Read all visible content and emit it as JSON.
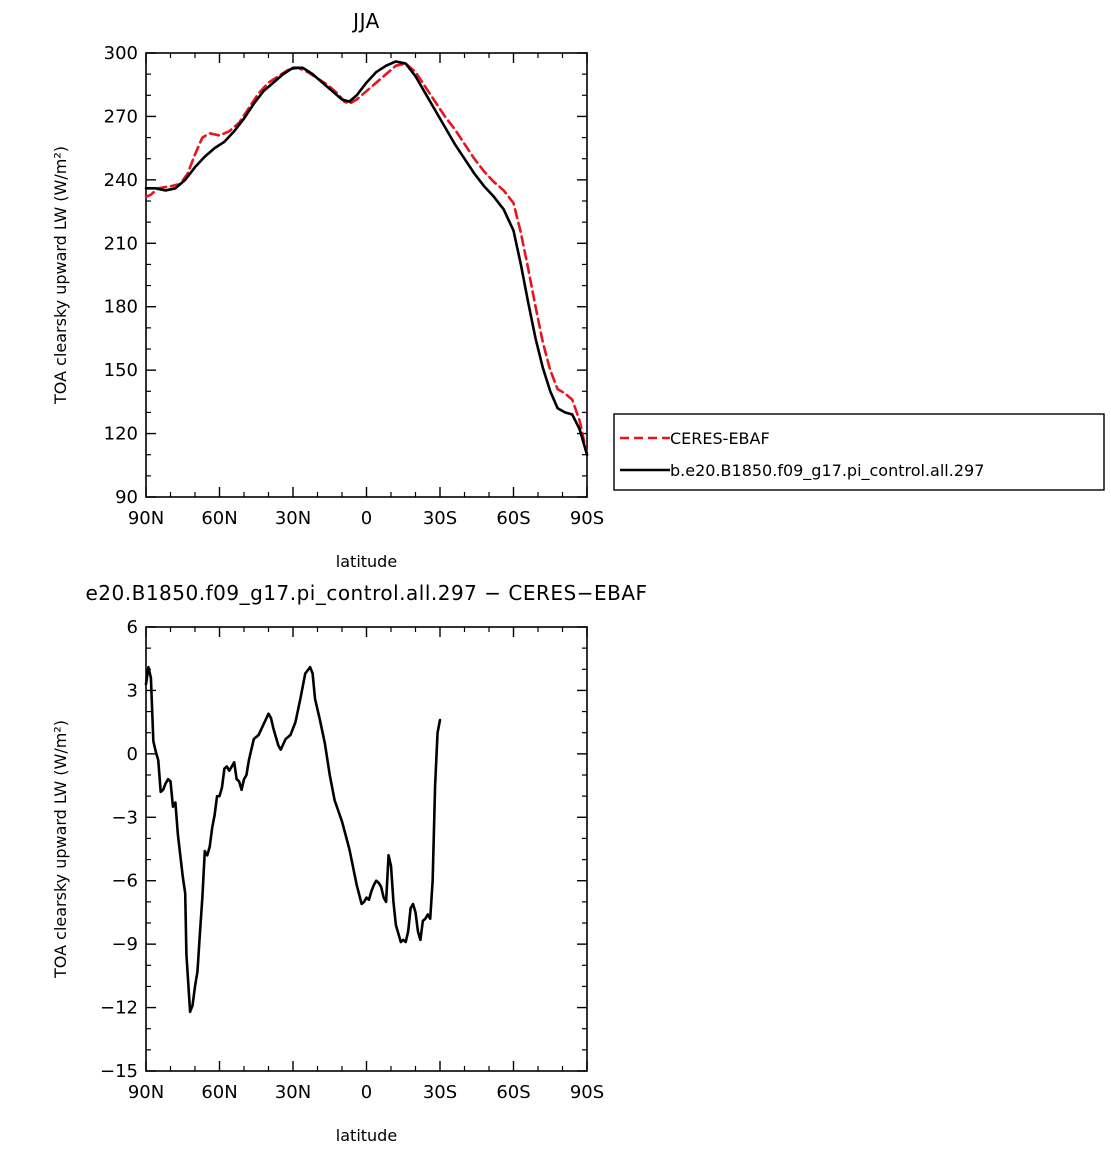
{
  "chart_data": [
    {
      "type": "line",
      "title": "JJA",
      "xlabel": "latitude",
      "ylabel": "TOA clearsky upward LW (W/m²)",
      "xlim": [
        90,
        -90
      ],
      "ylim": [
        90,
        300
      ],
      "yticks": [
        90,
        120,
        150,
        180,
        210,
        240,
        270,
        300
      ],
      "xticks": [
        {
          "value": 90,
          "label": "90N"
        },
        {
          "value": 60,
          "label": "60N"
        },
        {
          "value": 30,
          "label": "30N"
        },
        {
          "value": 0,
          "label": "0"
        },
        {
          "value": -30,
          "label": "30S"
        },
        {
          "value": -60,
          "label": "60S"
        },
        {
          "value": -90,
          "label": "90S"
        }
      ],
      "grid": false,
      "legend": {
        "placement": "right"
      },
      "series": [
        {
          "name": "CERES-EBAF",
          "color": "#e8141e",
          "dash": "dashed",
          "points": [
            [
              90,
              232
            ],
            [
              88,
              233
            ],
            [
              85,
              236
            ],
            [
              80,
              237
            ],
            [
              76,
              238
            ],
            [
              73,
              243
            ],
            [
              70,
              252
            ],
            [
              67,
              260
            ],
            [
              64,
              262
            ],
            [
              60,
              261
            ],
            [
              56,
              263
            ],
            [
              52,
              267
            ],
            [
              48,
              274
            ],
            [
              44,
              281
            ],
            [
              40,
              286
            ],
            [
              36,
              289
            ],
            [
              32,
              292
            ],
            [
              28,
              293
            ],
            [
              24,
              291
            ],
            [
              20,
              288
            ],
            [
              16,
              285
            ],
            [
              12,
              281
            ],
            [
              9,
              277
            ],
            [
              7,
              276
            ],
            [
              4,
              278
            ],
            [
              0,
              282
            ],
            [
              -4,
              286
            ],
            [
              -8,
              290
            ],
            [
              -12,
              294
            ],
            [
              -16,
              295
            ],
            [
              -20,
              291
            ],
            [
              -24,
              284
            ],
            [
              -28,
              277
            ],
            [
              -32,
              270
            ],
            [
              -36,
              264
            ],
            [
              -40,
              257
            ],
            [
              -44,
              250
            ],
            [
              -48,
              244
            ],
            [
              -52,
              239
            ],
            [
              -56,
              235
            ],
            [
              -60,
              229
            ],
            [
              -63,
              215
            ],
            [
              -66,
              198
            ],
            [
              -69,
              180
            ],
            [
              -72,
              163
            ],
            [
              -75,
              150
            ],
            [
              -78,
              141
            ],
            [
              -81,
              139
            ],
            [
              -84,
              136
            ],
            [
              -87,
              126
            ],
            [
              -90,
              110
            ]
          ]
        },
        {
          "name": "b.e20.B1850.f09_g17.pi_control.all.297",
          "color": "#000000",
          "dash": "solid",
          "points": [
            [
              90,
              236
            ],
            [
              86,
              236
            ],
            [
              82,
              235
            ],
            [
              78,
              236
            ],
            [
              74,
              240
            ],
            [
              70,
              246
            ],
            [
              66,
              251
            ],
            [
              62,
              255
            ],
            [
              58,
              258
            ],
            [
              54,
              263
            ],
            [
              50,
              269
            ],
            [
              46,
              276
            ],
            [
              42,
              282
            ],
            [
              38,
              286
            ],
            [
              34,
              290
            ],
            [
              30,
              293
            ],
            [
              26,
              293
            ],
            [
              22,
              290
            ],
            [
              18,
              286
            ],
            [
              14,
              282
            ],
            [
              10,
              278
            ],
            [
              7,
              277
            ],
            [
              4,
              280
            ],
            [
              0,
              286
            ],
            [
              -4,
              291
            ],
            [
              -8,
              294
            ],
            [
              -12,
              296
            ],
            [
              -16,
              295
            ],
            [
              -20,
              289
            ],
            [
              -24,
              281
            ],
            [
              -28,
              273
            ],
            [
              -32,
              265
            ],
            [
              -36,
              257
            ],
            [
              -40,
              250
            ],
            [
              -44,
              243
            ],
            [
              -48,
              237
            ],
            [
              -52,
              232
            ],
            [
              -56,
              226
            ],
            [
              -60,
              216
            ],
            [
              -63,
              200
            ],
            [
              -66,
              182
            ],
            [
              -69,
              165
            ],
            [
              -72,
              151
            ],
            [
              -75,
              140
            ],
            [
              -78,
              132
            ],
            [
              -81,
              130
            ],
            [
              -84,
              129
            ],
            [
              -87,
              122
            ],
            [
              -90,
              110
            ]
          ]
        }
      ]
    },
    {
      "type": "line",
      "title": "e20.B1850.f09_g17.pi_control.all.297 − CERES−EBAF",
      "xlabel": "latitude",
      "ylabel": "TOA clearsky upward LW (W/m²)",
      "xlim": [
        90,
        -90
      ],
      "ylim": [
        -15,
        6
      ],
      "yticks": [
        -15,
        -12,
        -9,
        -6,
        -3,
        0,
        3,
        6
      ],
      "xticks": [
        {
          "value": 90,
          "label": "90N"
        },
        {
          "value": 60,
          "label": "60N"
        },
        {
          "value": 30,
          "label": "30N"
        },
        {
          "value": 0,
          "label": "0"
        },
        {
          "value": -30,
          "label": "30S"
        },
        {
          "value": -60,
          "label": "60S"
        },
        {
          "value": -90,
          "label": "90S"
        }
      ],
      "grid": false,
      "series": [
        {
          "color": "#000000",
          "dash": "solid",
          "points": [
            [
              90,
              3.3
            ],
            [
              89,
              4.1
            ],
            [
              88,
              3.6
            ],
            [
              87,
              0.6
            ],
            [
              86,
              0.1
            ],
            [
              85,
              -0.3
            ],
            [
              84,
              -1.8
            ],
            [
              83,
              -1.7
            ],
            [
              82,
              -1.4
            ],
            [
              81,
              -1.2
            ],
            [
              80,
              -1.3
            ],
            [
              79,
              -2.5
            ],
            [
              78,
              -2.3
            ],
            [
              77,
              -3.8
            ],
            [
              76,
              -4.8
            ],
            [
              75,
              -5.8
            ],
            [
              74,
              -6.6
            ],
            [
              73.5,
              -9.5
            ],
            [
              72,
              -12.2
            ],
            [
              71,
              -11.9
            ],
            [
              70,
              -11.0
            ],
            [
              69,
              -10.3
            ],
            [
              68,
              -8.5
            ],
            [
              67,
              -6.8
            ],
            [
              66,
              -4.6
            ],
            [
              65,
              -4.8
            ],
            [
              64,
              -4.4
            ],
            [
              63,
              -3.5
            ],
            [
              62,
              -2.9
            ],
            [
              61,
              -2.0
            ],
            [
              60,
              -2.0
            ],
            [
              59,
              -1.6
            ],
            [
              58,
              -0.7
            ],
            [
              57,
              -0.6
            ],
            [
              56,
              -0.8
            ],
            [
              55,
              -0.6
            ],
            [
              54,
              -0.4
            ],
            [
              53,
              -1.2
            ],
            [
              52,
              -1.3
            ],
            [
              51,
              -1.7
            ],
            [
              50,
              -1.2
            ],
            [
              49,
              -1.0
            ],
            [
              48,
              -0.3
            ],
            [
              46,
              0.7
            ],
            [
              44,
              0.9
            ],
            [
              42,
              1.4
            ],
            [
              40,
              1.9
            ],
            [
              39,
              1.7
            ],
            [
              38,
              1.2
            ],
            [
              36,
              0.4
            ],
            [
              35,
              0.2
            ],
            [
              33,
              0.7
            ],
            [
              31,
              0.9
            ],
            [
              29,
              1.5
            ],
            [
              27,
              2.6
            ],
            [
              25,
              3.8
            ],
            [
              23,
              4.1
            ],
            [
              22,
              3.8
            ],
            [
              21,
              2.6
            ],
            [
              19,
              1.6
            ],
            [
              17,
              0.5
            ],
            [
              15,
              -1.0
            ],
            [
              13,
              -2.2
            ],
            [
              10,
              -3.2
            ],
            [
              7,
              -4.5
            ],
            [
              4,
              -6.2
            ],
            [
              2,
              -7.1
            ],
            [
              1,
              -7.0
            ],
            [
              0,
              -6.8
            ],
            [
              -1,
              -6.9
            ],
            [
              -2,
              -6.5
            ],
            [
              -3,
              -6.2
            ],
            [
              -4,
              -6.0
            ],
            [
              -5,
              -6.1
            ],
            [
              -6,
              -6.3
            ],
            [
              -7,
              -6.8
            ],
            [
              -8,
              -7.0
            ],
            [
              -9,
              -4.8
            ],
            [
              -10,
              -5.3
            ],
            [
              -11,
              -7.0
            ],
            [
              -12,
              -8.1
            ],
            [
              -13,
              -8.5
            ],
            [
              -14,
              -8.9
            ],
            [
              -15,
              -8.8
            ],
            [
              -16,
              -8.9
            ],
            [
              -17,
              -8.4
            ],
            [
              -18,
              -7.3
            ],
            [
              -19,
              -7.1
            ],
            [
              -20,
              -7.5
            ],
            [
              -21,
              -8.4
            ],
            [
              -22,
              -8.8
            ],
            [
              -23,
              -7.9
            ],
            [
              -24,
              -7.8
            ],
            [
              -25,
              -7.6
            ],
            [
              -26,
              -7.8
            ],
            [
              -27,
              -6.0
            ],
            [
              -28,
              -1.5
            ],
            [
              -29,
              1.0
            ],
            [
              -30,
              1.6
            ]
          ]
        }
      ]
    }
  ]
}
